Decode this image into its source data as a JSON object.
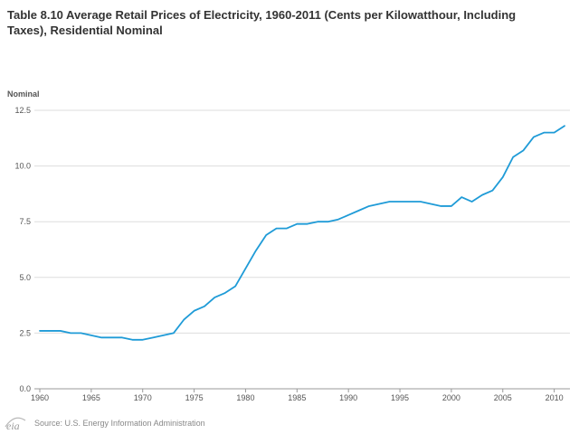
{
  "chart_data": {
    "type": "line",
    "title": "Table 8.10 Average Retail Prices of Electricity, 1960-2011 (Cents per Kilowatthour, Including Taxes), Residential Nominal",
    "ylabel": "Nominal",
    "xlabel": "",
    "ylim": [
      0,
      12.5
    ],
    "xlim": [
      1960,
      2011
    ],
    "yticks": [
      "0.0",
      "2.5",
      "5.0",
      "7.5",
      "10.0",
      "12.5"
    ],
    "xticks": [
      "1960",
      "1965",
      "1970",
      "1975",
      "1980",
      "1985",
      "1990",
      "1995",
      "2000",
      "2005",
      "2010"
    ],
    "grid": true,
    "series": [
      {
        "name": "Residential Nominal",
        "color": "#1f9bd7",
        "x": [
          1960,
          1961,
          1962,
          1963,
          1964,
          1965,
          1966,
          1967,
          1968,
          1969,
          1970,
          1971,
          1972,
          1973,
          1974,
          1975,
          1976,
          1977,
          1978,
          1979,
          1980,
          1981,
          1982,
          1983,
          1984,
          1985,
          1986,
          1987,
          1988,
          1989,
          1990,
          1991,
          1992,
          1993,
          1994,
          1995,
          1996,
          1997,
          1998,
          1999,
          2000,
          2001,
          2002,
          2003,
          2004,
          2005,
          2006,
          2007,
          2008,
          2009,
          2010,
          2011
        ],
        "values": [
          2.6,
          2.6,
          2.6,
          2.5,
          2.5,
          2.4,
          2.3,
          2.3,
          2.3,
          2.2,
          2.2,
          2.3,
          2.4,
          2.5,
          3.1,
          3.5,
          3.7,
          4.1,
          4.3,
          4.6,
          5.4,
          6.2,
          6.9,
          7.2,
          7.2,
          7.4,
          7.4,
          7.5,
          7.5,
          7.6,
          7.8,
          8.0,
          8.2,
          8.3,
          8.4,
          8.4,
          8.4,
          8.4,
          8.3,
          8.2,
          8.2,
          8.6,
          8.4,
          8.7,
          8.9,
          9.5,
          10.4,
          10.7,
          11.3,
          11.5,
          11.5,
          11.8
        ]
      }
    ]
  },
  "footer": {
    "logo_text": "eia",
    "source": "Source: U.S. Energy Information Administration"
  },
  "colors": {
    "line": "#1f9bd7",
    "grid": "#dddddd",
    "axis": "#999999"
  }
}
